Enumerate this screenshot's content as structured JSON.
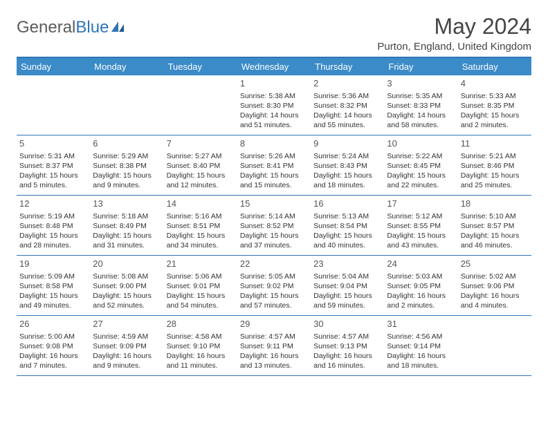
{
  "brand": {
    "part1": "General",
    "part2": "Blue"
  },
  "title": "May 2024",
  "location": "Purton, England, United Kingdom",
  "colors": {
    "header_bg": "#3b8bc8",
    "border": "#2e75b6",
    "text": "#333333",
    "title_text": "#444444",
    "logo_gray": "#5a5a5a",
    "logo_blue": "#2e75b6",
    "background": "#ffffff"
  },
  "day_names": [
    "Sunday",
    "Monday",
    "Tuesday",
    "Wednesday",
    "Thursday",
    "Friday",
    "Saturday"
  ],
  "weeks": [
    [
      null,
      null,
      null,
      {
        "n": "1",
        "sr": "Sunrise: 5:38 AM",
        "ss": "Sunset: 8:30 PM",
        "dl": "Daylight: 14 hours and 51 minutes."
      },
      {
        "n": "2",
        "sr": "Sunrise: 5:36 AM",
        "ss": "Sunset: 8:32 PM",
        "dl": "Daylight: 14 hours and 55 minutes."
      },
      {
        "n": "3",
        "sr": "Sunrise: 5:35 AM",
        "ss": "Sunset: 8:33 PM",
        "dl": "Daylight: 14 hours and 58 minutes."
      },
      {
        "n": "4",
        "sr": "Sunrise: 5:33 AM",
        "ss": "Sunset: 8:35 PM",
        "dl": "Daylight: 15 hours and 2 minutes."
      }
    ],
    [
      {
        "n": "5",
        "sr": "Sunrise: 5:31 AM",
        "ss": "Sunset: 8:37 PM",
        "dl": "Daylight: 15 hours and 5 minutes."
      },
      {
        "n": "6",
        "sr": "Sunrise: 5:29 AM",
        "ss": "Sunset: 8:38 PM",
        "dl": "Daylight: 15 hours and 9 minutes."
      },
      {
        "n": "7",
        "sr": "Sunrise: 5:27 AM",
        "ss": "Sunset: 8:40 PM",
        "dl": "Daylight: 15 hours and 12 minutes."
      },
      {
        "n": "8",
        "sr": "Sunrise: 5:26 AM",
        "ss": "Sunset: 8:41 PM",
        "dl": "Daylight: 15 hours and 15 minutes."
      },
      {
        "n": "9",
        "sr": "Sunrise: 5:24 AM",
        "ss": "Sunset: 8:43 PM",
        "dl": "Daylight: 15 hours and 18 minutes."
      },
      {
        "n": "10",
        "sr": "Sunrise: 5:22 AM",
        "ss": "Sunset: 8:45 PM",
        "dl": "Daylight: 15 hours and 22 minutes."
      },
      {
        "n": "11",
        "sr": "Sunrise: 5:21 AM",
        "ss": "Sunset: 8:46 PM",
        "dl": "Daylight: 15 hours and 25 minutes."
      }
    ],
    [
      {
        "n": "12",
        "sr": "Sunrise: 5:19 AM",
        "ss": "Sunset: 8:48 PM",
        "dl": "Daylight: 15 hours and 28 minutes."
      },
      {
        "n": "13",
        "sr": "Sunrise: 5:18 AM",
        "ss": "Sunset: 8:49 PM",
        "dl": "Daylight: 15 hours and 31 minutes."
      },
      {
        "n": "14",
        "sr": "Sunrise: 5:16 AM",
        "ss": "Sunset: 8:51 PM",
        "dl": "Daylight: 15 hours and 34 minutes."
      },
      {
        "n": "15",
        "sr": "Sunrise: 5:14 AM",
        "ss": "Sunset: 8:52 PM",
        "dl": "Daylight: 15 hours and 37 minutes."
      },
      {
        "n": "16",
        "sr": "Sunrise: 5:13 AM",
        "ss": "Sunset: 8:54 PM",
        "dl": "Daylight: 15 hours and 40 minutes."
      },
      {
        "n": "17",
        "sr": "Sunrise: 5:12 AM",
        "ss": "Sunset: 8:55 PM",
        "dl": "Daylight: 15 hours and 43 minutes."
      },
      {
        "n": "18",
        "sr": "Sunrise: 5:10 AM",
        "ss": "Sunset: 8:57 PM",
        "dl": "Daylight: 15 hours and 46 minutes."
      }
    ],
    [
      {
        "n": "19",
        "sr": "Sunrise: 5:09 AM",
        "ss": "Sunset: 8:58 PM",
        "dl": "Daylight: 15 hours and 49 minutes."
      },
      {
        "n": "20",
        "sr": "Sunrise: 5:08 AM",
        "ss": "Sunset: 9:00 PM",
        "dl": "Daylight: 15 hours and 52 minutes."
      },
      {
        "n": "21",
        "sr": "Sunrise: 5:06 AM",
        "ss": "Sunset: 9:01 PM",
        "dl": "Daylight: 15 hours and 54 minutes."
      },
      {
        "n": "22",
        "sr": "Sunrise: 5:05 AM",
        "ss": "Sunset: 9:02 PM",
        "dl": "Daylight: 15 hours and 57 minutes."
      },
      {
        "n": "23",
        "sr": "Sunrise: 5:04 AM",
        "ss": "Sunset: 9:04 PM",
        "dl": "Daylight: 15 hours and 59 minutes."
      },
      {
        "n": "24",
        "sr": "Sunrise: 5:03 AM",
        "ss": "Sunset: 9:05 PM",
        "dl": "Daylight: 16 hours and 2 minutes."
      },
      {
        "n": "25",
        "sr": "Sunrise: 5:02 AM",
        "ss": "Sunset: 9:06 PM",
        "dl": "Daylight: 16 hours and 4 minutes."
      }
    ],
    [
      {
        "n": "26",
        "sr": "Sunrise: 5:00 AM",
        "ss": "Sunset: 9:08 PM",
        "dl": "Daylight: 16 hours and 7 minutes."
      },
      {
        "n": "27",
        "sr": "Sunrise: 4:59 AM",
        "ss": "Sunset: 9:09 PM",
        "dl": "Daylight: 16 hours and 9 minutes."
      },
      {
        "n": "28",
        "sr": "Sunrise: 4:58 AM",
        "ss": "Sunset: 9:10 PM",
        "dl": "Daylight: 16 hours and 11 minutes."
      },
      {
        "n": "29",
        "sr": "Sunrise: 4:57 AM",
        "ss": "Sunset: 9:11 PM",
        "dl": "Daylight: 16 hours and 13 minutes."
      },
      {
        "n": "30",
        "sr": "Sunrise: 4:57 AM",
        "ss": "Sunset: 9:13 PM",
        "dl": "Daylight: 16 hours and 16 minutes."
      },
      {
        "n": "31",
        "sr": "Sunrise: 4:56 AM",
        "ss": "Sunset: 9:14 PM",
        "dl": "Daylight: 16 hours and 18 minutes."
      },
      null
    ]
  ]
}
